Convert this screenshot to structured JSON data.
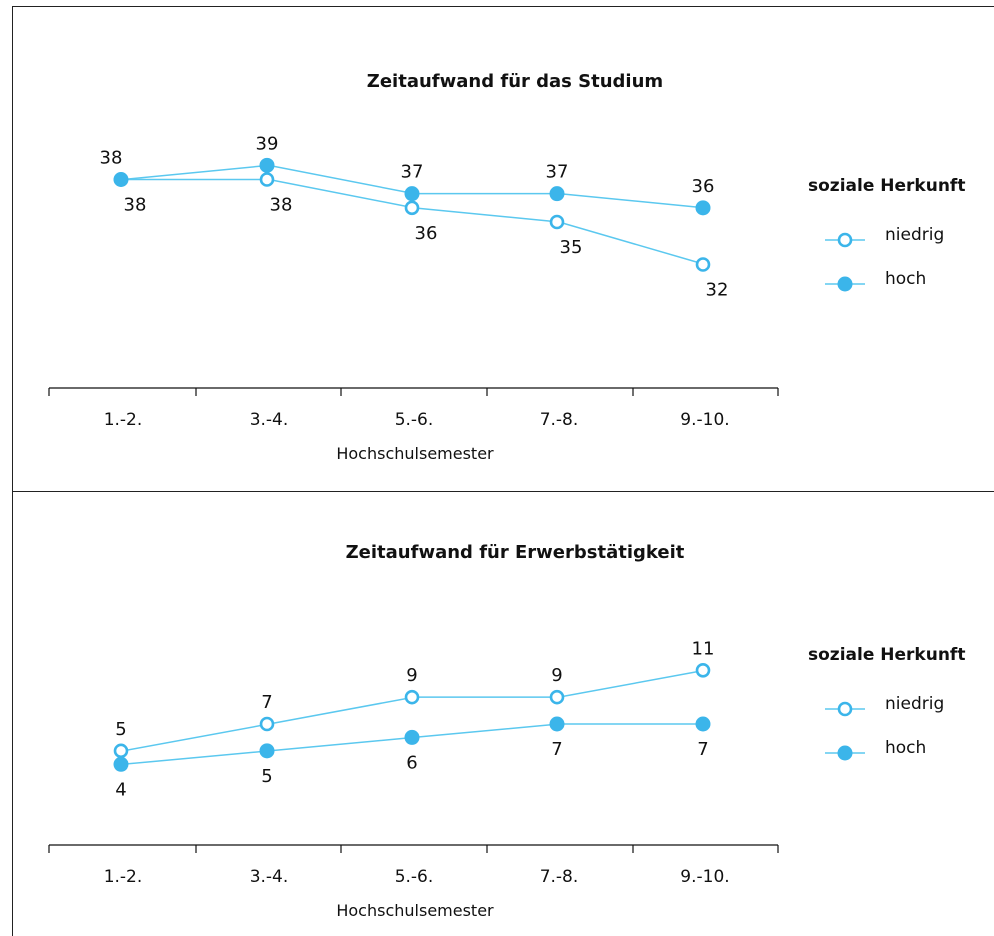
{
  "chart_data": [
    {
      "type": "line",
      "title": "Zeitaufwand für das Studium",
      "xlabel": "Hochschulsemester",
      "ylabel": "",
      "categories": [
        "1.-2.",
        "3.-4.",
        "5.-6.",
        "7.-8.",
        "9.-10."
      ],
      "ylim": [
        29,
        41
      ],
      "legend": {
        "title": "soziale Herkunft",
        "placement": "right"
      },
      "series": [
        {
          "name": "niedrig",
          "marker": "open",
          "values": [
            38,
            38,
            36,
            35,
            32
          ]
        },
        {
          "name": "hoch",
          "marker": "filled",
          "values": [
            38,
            39,
            37,
            37,
            36
          ]
        }
      ]
    },
    {
      "type": "line",
      "title": "Zeitaufwand für Erwerbstätigkeit",
      "xlabel": "Hochschulsemester",
      "ylabel": "",
      "categories": [
        "1.-2.",
        "3.-4.",
        "5.-6.",
        "7.-8.",
        "9.-10."
      ],
      "ylim": [
        0,
        14
      ],
      "legend": {
        "title": "soziale Herkunft",
        "placement": "right"
      },
      "series": [
        {
          "name": "niedrig",
          "marker": "open",
          "values": [
            5,
            7,
            9,
            9,
            11
          ]
        },
        {
          "name": "hoch",
          "marker": "filled",
          "values": [
            4,
            5,
            6,
            7,
            7
          ]
        }
      ]
    }
  ],
  "colors": {
    "line": "#5bc8ef",
    "marker": "#3bb5ea",
    "axis": "#111111"
  }
}
